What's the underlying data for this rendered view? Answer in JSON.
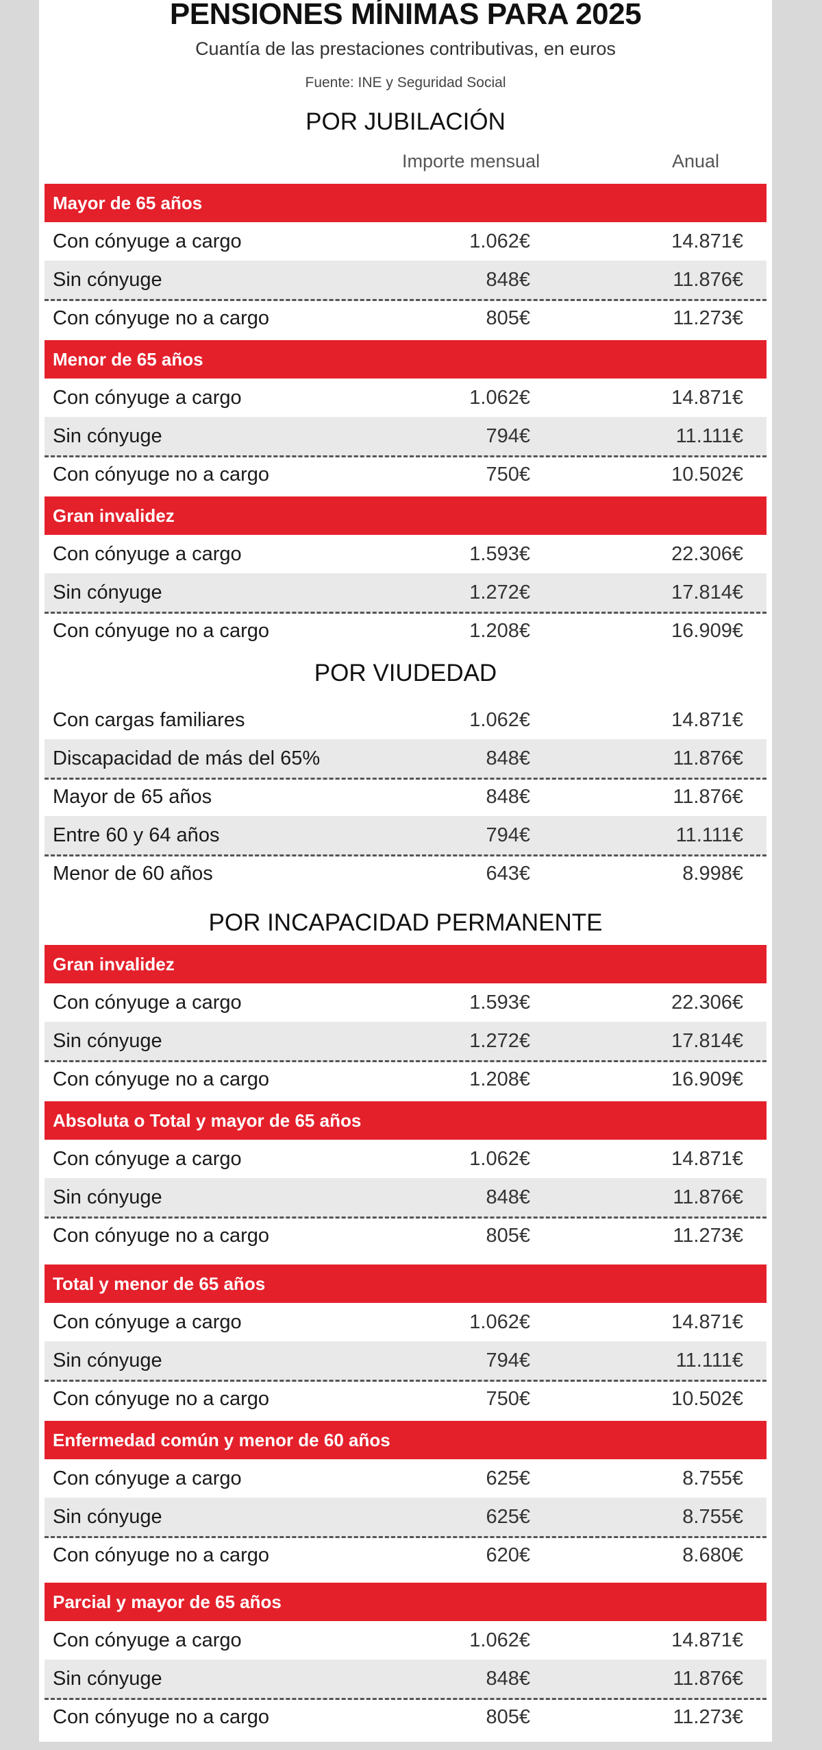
{
  "title": "PENSIONES MÍNIMAS PARA 2025",
  "subtitle": "Cuantía de las prestaciones contributivas, en euros",
  "source": "Fuente: INE y Seguridad Social",
  "columns": {
    "monthly": "Importe mensual",
    "annual": "Anual"
  },
  "sections": [
    {
      "title": "POR JUBILACIÓN",
      "groups": [
        {
          "label": "Mayor de 65 años",
          "rows": [
            {
              "label": "Con cónyuge a cargo",
              "monthly": "1.062€",
              "annual": "14.871€"
            },
            {
              "label": "Sin cónyuge",
              "monthly": "848€",
              "annual": "11.876€"
            },
            {
              "label": "Con cónyuge no a cargo",
              "monthly": "805€",
              "annual": "11.273€"
            }
          ]
        },
        {
          "label": "Menor de 65 años",
          "rows": [
            {
              "label": "Con cónyuge a cargo",
              "monthly": "1.062€",
              "annual": "14.871€"
            },
            {
              "label": "Sin cónyuge",
              "monthly": "794€",
              "annual": "11.111€"
            },
            {
              "label": "Con cónyuge no a cargo",
              "monthly": "750€",
              "annual": "10.502€"
            }
          ]
        },
        {
          "label": "Gran invalidez",
          "rows": [
            {
              "label": "Con cónyuge a cargo",
              "monthly": "1.593€",
              "annual": "22.306€"
            },
            {
              "label": "Sin cónyuge",
              "monthly": "1.272€",
              "annual": "17.814€"
            },
            {
              "label": "Con cónyuge no a cargo",
              "monthly": "1.208€",
              "annual": "16.909€"
            }
          ]
        }
      ]
    },
    {
      "title": "POR VIUDEDAD",
      "groups": [
        {
          "label": null,
          "rows": [
            {
              "label": "Con cargas familiares",
              "monthly": "1.062€",
              "annual": "14.871€"
            },
            {
              "label": "Discapacidad de más del 65%",
              "monthly": "848€",
              "annual": "11.876€"
            },
            {
              "label": "Mayor de 65 años",
              "monthly": "848€",
              "annual": "11.876€"
            },
            {
              "label": "Entre 60 y 64 años",
              "monthly": "794€",
              "annual": "11.111€"
            },
            {
              "label": "Menor de 60 años",
              "monthly": "643€",
              "annual": "8.998€"
            }
          ]
        }
      ]
    },
    {
      "title": "POR INCAPACIDAD PERMANENTE",
      "groups": [
        {
          "label": "Gran invalidez",
          "rows": [
            {
              "label": "Con cónyuge a cargo",
              "monthly": "1.593€",
              "annual": "22.306€"
            },
            {
              "label": "Sin cónyuge",
              "monthly": "1.272€",
              "annual": "17.814€"
            },
            {
              "label": "Con cónyuge no a cargo",
              "monthly": "1.208€",
              "annual": "16.909€"
            }
          ]
        },
        {
          "label": "Absoluta o Total y mayor de 65 años",
          "rows": [
            {
              "label": "Con cónyuge a cargo",
              "monthly": "1.062€",
              "annual": "14.871€"
            },
            {
              "label": "Sin cónyuge",
              "monthly": "848€",
              "annual": "11.876€"
            },
            {
              "label": "Con cónyuge no a cargo",
              "monthly": "805€",
              "annual": "11.273€"
            }
          ]
        },
        {
          "label": "Total y menor de 65 años",
          "rows": [
            {
              "label": "Con cónyuge a cargo",
              "monthly": "1.062€",
              "annual": "14.871€"
            },
            {
              "label": "Sin cónyuge",
              "monthly": "794€",
              "annual": "11.111€"
            },
            {
              "label": "Con cónyuge no a cargo",
              "monthly": "750€",
              "annual": "10.502€"
            }
          ]
        },
        {
          "label": "Enfermedad común y menor de 60 años",
          "rows": [
            {
              "label": "Con cónyuge a cargo",
              "monthly": "625€",
              "annual": "8.755€"
            },
            {
              "label": "Sin cónyuge",
              "monthly": "625€",
              "annual": "8.755€"
            },
            {
              "label": "Con cónyuge no a cargo",
              "monthly": "620€",
              "annual": "8.680€"
            }
          ]
        },
        {
          "label": "Parcial y mayor de 65 años",
          "rows": [
            {
              "label": "Con cónyuge a cargo",
              "monthly": "1.062€",
              "annual": "14.871€"
            },
            {
              "label": "Sin cónyuge",
              "monthly": "848€",
              "annual": "11.876€"
            },
            {
              "label": "Con cónyuge no a cargo",
              "monthly": "805€",
              "annual": "11.273€"
            }
          ]
        }
      ]
    }
  ],
  "colors": {
    "header_red": "#e4202b",
    "row_shade": "#e9e9e9",
    "background": "#d9d9d9"
  }
}
